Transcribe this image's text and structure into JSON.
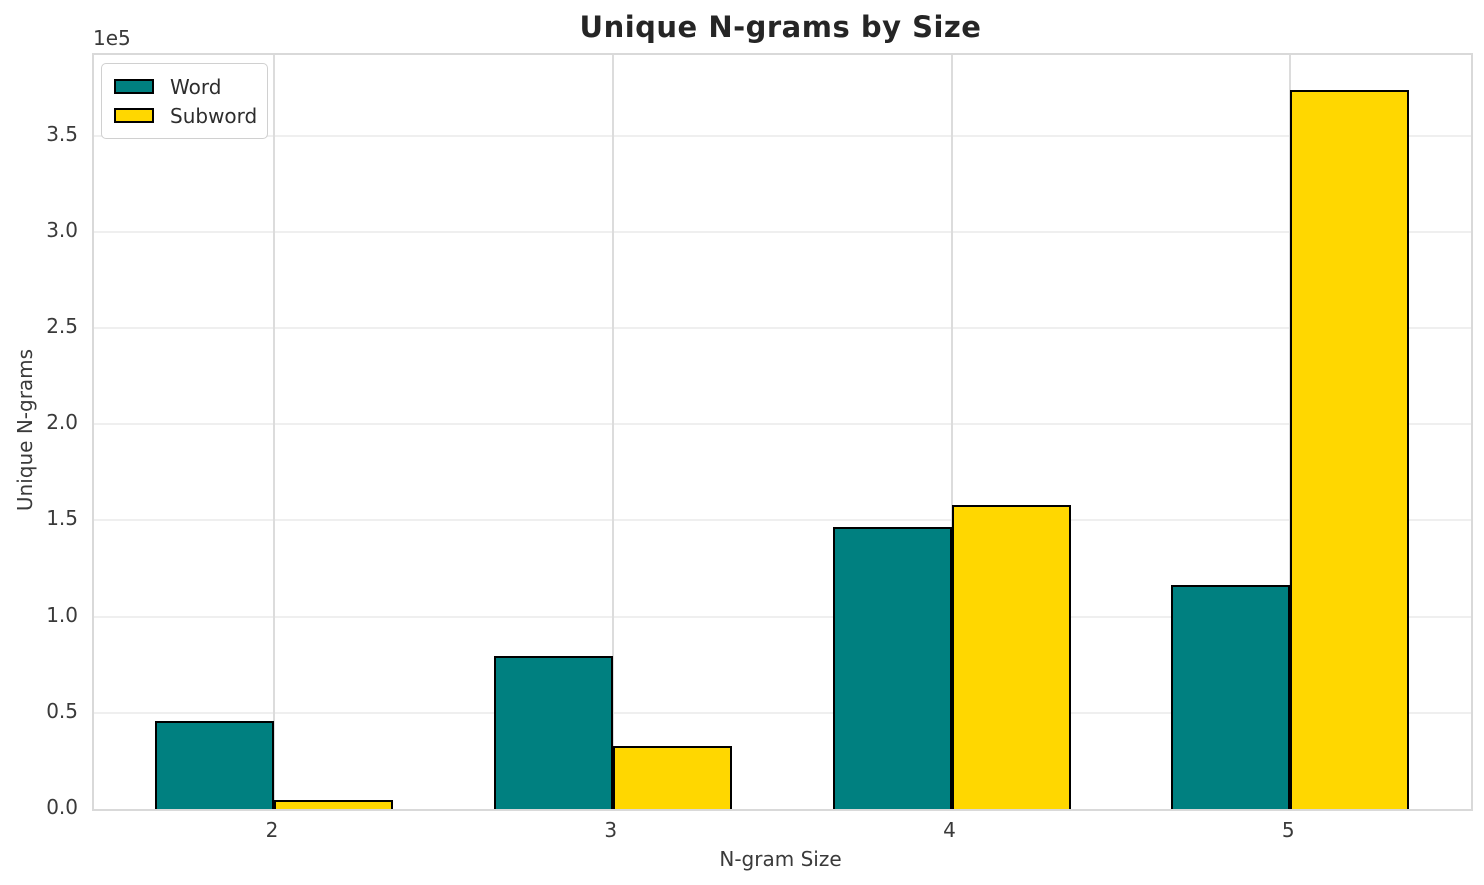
{
  "chart_data": {
    "type": "bar",
    "title": "Unique N-grams by Size",
    "xlabel": "N-gram Size",
    "ylabel": "Unique N-grams",
    "offset_text": "1e5",
    "categories": [
      "2",
      "3",
      "4",
      "5"
    ],
    "series": [
      {
        "name": "Word",
        "color": "#008080",
        "values": [
          45600,
          79300,
          146500,
          116300
        ]
      },
      {
        "name": "Subword",
        "color": "#FFD700",
        "values": [
          4600,
          32900,
          157900,
          374000
        ]
      }
    ],
    "ylim": [
      0,
      392000
    ],
    "yticks": [
      0,
      50000,
      100000,
      150000,
      200000,
      250000,
      300000,
      350000
    ],
    "ytick_labels": [
      "0.0",
      "0.5",
      "1.0",
      "1.5",
      "2.0",
      "2.5",
      "3.0",
      "3.5"
    ],
    "grid": true,
    "legend_position": "upper left",
    "bar_edge_color": "#000000"
  }
}
